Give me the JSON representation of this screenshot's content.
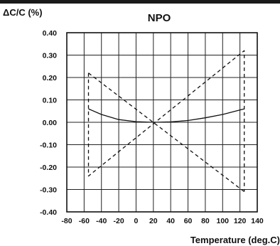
{
  "chart_data": {
    "type": "line",
    "title": "NPO",
    "ylabel": "ΔC/C (%)",
    "xlabel": "Temperature (deg.C)",
    "xlim": [
      -80,
      140
    ],
    "ylim": [
      -0.4,
      0.4
    ],
    "x_ticks": [
      -80,
      -60,
      -40,
      -20,
      0,
      20,
      40,
      60,
      80,
      100,
      120,
      140
    ],
    "x_tick_labels": [
      "-80",
      "-60",
      "-40",
      "-20",
      "0",
      "20",
      "40",
      "60",
      "80",
      "100",
      "120",
      "140"
    ],
    "y_ticks": [
      0.4,
      0.3,
      0.2,
      0.1,
      0.0,
      -0.1,
      -0.2,
      -0.3,
      -0.4
    ],
    "y_tick_labels": [
      "0.40",
      "0.30",
      "0.20",
      "0.10",
      "0.00",
      "-0.10",
      "-0.20",
      "-0.30",
      "-0.40"
    ],
    "grid": true,
    "series": [
      {
        "style": "dashed",
        "x": [
          -55,
          -55,
          125,
          125
        ],
        "y": [
          0.22,
          -0.24,
          0.32,
          -0.31
        ]
      },
      {
        "style": "dashed",
        "x": [
          -55,
          125
        ],
        "y": [
          0.22,
          -0.31
        ]
      },
      {
        "style": "solid",
        "x": [
          -55,
          -40,
          -20,
          0,
          20,
          40,
          60,
          80,
          100,
          125
        ],
        "y": [
          0.06,
          0.035,
          0.012,
          0.003,
          0.0,
          0.002,
          0.008,
          0.02,
          0.035,
          0.06
        ]
      }
    ]
  }
}
